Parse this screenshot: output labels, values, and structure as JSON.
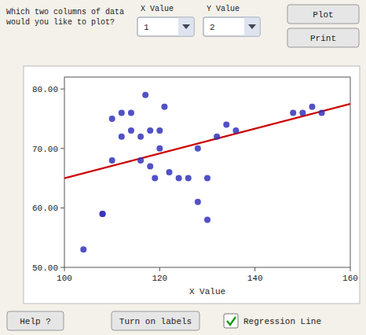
{
  "chart_data": {
    "type": "scatter",
    "xlabel": "X Value",
    "series": [
      {
        "type": "scatter",
        "color": "#3333bb",
        "x": [
          104,
          108,
          108,
          110,
          110,
          112,
          112,
          114,
          114,
          116,
          116,
          117,
          118,
          118,
          119,
          120,
          120,
          121,
          122,
          124,
          126,
          128,
          128,
          130,
          130,
          132,
          134,
          136,
          148,
          150,
          152,
          154
        ],
        "values": [
          53,
          59,
          59,
          68,
          75,
          72,
          76,
          73,
          76,
          68,
          72,
          79,
          67,
          73,
          65,
          70,
          73,
          77,
          66,
          65,
          65,
          70,
          61,
          65,
          58,
          72,
          74,
          73,
          76,
          76,
          77,
          76
        ]
      },
      {
        "type": "line",
        "color": "#cc0000",
        "x": [
          100,
          160
        ],
        "values": [
          65.0,
          77.5
        ]
      }
    ],
    "xlim": [
      100,
      160
    ],
    "ylim": [
      50,
      82
    ],
    "xticks": [
      100,
      120,
      140,
      160
    ],
    "yticks": [
      {
        "value": 50,
        "label": "50.00"
      },
      {
        "value": 60,
        "label": "60.00"
      },
      {
        "value": 70,
        "label": "70.00"
      },
      {
        "value": 80,
        "label": "80.00"
      }
    ],
    "grid": false,
    "annotations": [
      "Which two columns of data\nwould you like to plot?",
      "X Value",
      "Y Value",
      "1",
      "2",
      "Plot",
      "Print",
      "Help ?",
      "Turn on labels",
      "Regression Line"
    ]
  }
}
